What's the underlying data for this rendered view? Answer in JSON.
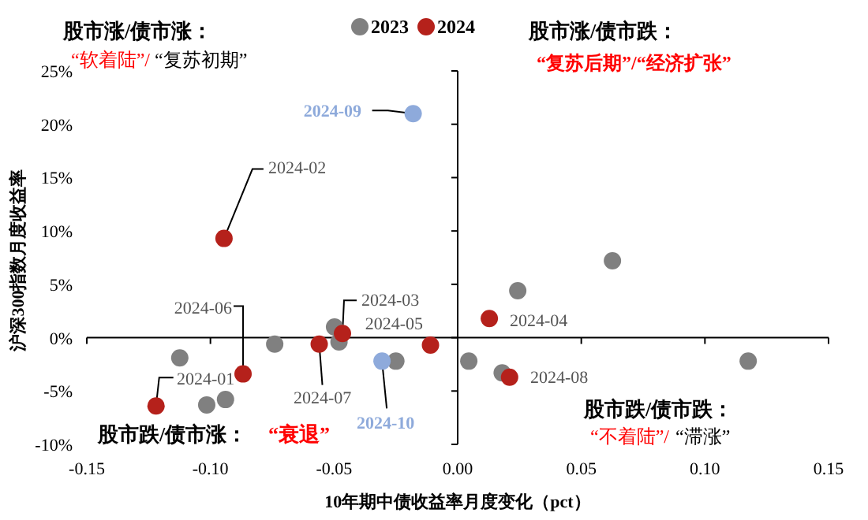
{
  "chart_data": {
    "type": "scatter",
    "xlabel": "10年期中债收益率月度变化（pct）",
    "ylabel": "沪深300指数月度收益率",
    "xlim": [
      -0.15,
      0.15
    ],
    "ylim": [
      -10,
      25
    ],
    "xticks": [
      {
        "value": -0.15,
        "label": "-0.15"
      },
      {
        "value": -0.1,
        "label": "-0.10"
      },
      {
        "value": -0.05,
        "label": "-0.05"
      },
      {
        "value": 0,
        "label": "0.00"
      },
      {
        "value": 0.05,
        "label": "0.05"
      },
      {
        "value": 0.1,
        "label": "0.10"
      },
      {
        "value": 0.15,
        "label": "0.15"
      }
    ],
    "yticks": [
      {
        "value": -10,
        "label": "-10%"
      },
      {
        "value": -5,
        "label": "-5%"
      },
      {
        "value": 0,
        "label": "0%"
      },
      {
        "value": 5,
        "label": "5%"
      },
      {
        "value": 10,
        "label": "10%"
      },
      {
        "value": 15,
        "label": "15%"
      },
      {
        "value": 20,
        "label": "20%"
      },
      {
        "value": 25,
        "label": "25%"
      }
    ],
    "legend": "top",
    "marker": "circle",
    "series": [
      {
        "name": "2023",
        "color": "#808080",
        "x": [
          0.0626,
          0.0243,
          0.0045,
          0.018,
          0.1175,
          -0.1124,
          -0.1015,
          -0.0939,
          -0.074,
          -0.0498,
          -0.048,
          -0.025
        ],
        "values": [
          7.2,
          4.4,
          -2.2,
          -3.3,
          -2.2,
          -1.9,
          -6.3,
          -5.8,
          -0.6,
          1.0,
          -0.4,
          -2.2
        ]
      },
      {
        "name": "2024",
        "color": "#b5211b",
        "x": [
          -0.122,
          -0.0945,
          -0.0466,
          0.0128,
          -0.011,
          -0.0868,
          -0.056,
          0.021,
          -0.018,
          -0.0306
        ],
        "values": [
          -6.4,
          9.3,
          0.4,
          1.8,
          -0.7,
          -3.4,
          -0.6,
          -3.7,
          21.0,
          -2.2
        ],
        "colors": [
          "#b5211b",
          "#b5211b",
          "#b5211b",
          "#b5211b",
          "#b5211b",
          "#b5211b",
          "#b5211b",
          "#b5211b",
          "#8eaadb",
          "#8eaadb"
        ]
      }
    ],
    "annotations": [
      {
        "text": "2024-01",
        "x": -0.122,
        "y": -6.4
      },
      {
        "text": "2024-02",
        "x": -0.0945,
        "y": 9.3
      },
      {
        "text": "2024-03",
        "x": -0.0466,
        "y": 0.4
      },
      {
        "text": "2024-04",
        "x": 0.0128,
        "y": 1.8
      },
      {
        "text": "2024-05",
        "x": -0.011,
        "y": -0.7
      },
      {
        "text": "2024-06",
        "x": -0.0868,
        "y": -3.4
      },
      {
        "text": "2024-07",
        "x": -0.056,
        "y": -0.6
      },
      {
        "text": "2024-08",
        "x": 0.021,
        "y": -3.7
      },
      {
        "text": "2024-09",
        "x": -0.018,
        "y": 21.0
      },
      {
        "text": "2024-10",
        "x": -0.0306,
        "y": -2.2
      },
      "股市涨/债市涨：",
      "“软着陆”/",
      "“复苏初期”",
      "股市涨/债市跌：",
      "“复苏后期”/“经济扩张”",
      "股市跌/债市涨：",
      "“衰退”",
      "股市跌/债市跌：",
      "“不着陆”/",
      "“滞涨”"
    ]
  }
}
